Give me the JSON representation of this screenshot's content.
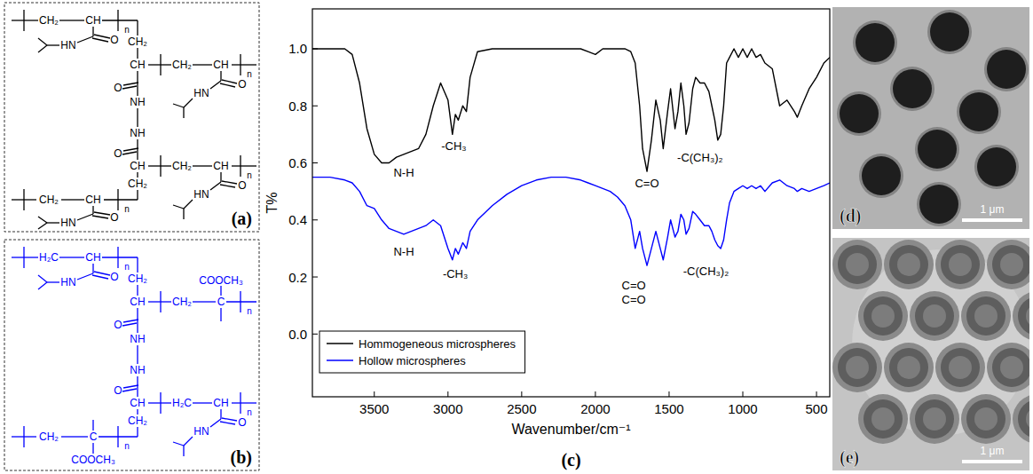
{
  "structure_a": {
    "label": "(a)",
    "color": "#000000",
    "atoms": [
      "CH₂",
      "CH",
      "n",
      "CH₂",
      "HN",
      "O",
      "CH",
      "CH₂",
      "CH",
      "n",
      "HN",
      "O",
      "O",
      "NH",
      "NH",
      "O",
      "CH",
      "CH₂",
      "CH₂",
      "CH",
      "n",
      "CH₂",
      "CH",
      "n",
      "HN",
      "O",
      "HN",
      "O"
    ]
  },
  "structure_b": {
    "label": "(b)",
    "color": "#0000ff",
    "atoms": [
      "H₂C",
      "CH",
      "n",
      "CH₂",
      "HN",
      "O",
      "CH",
      "CH₂",
      "C",
      "n",
      "COOCH₃",
      "O",
      "NH",
      "NH",
      "O",
      "CH",
      "CH₂",
      "CH₂",
      "C",
      "n",
      "COOCH₃",
      "H₂C",
      "CH",
      "n",
      "HN",
      "O"
    ]
  },
  "chart_data": {
    "type": "line",
    "panel_label": "(c)",
    "x_label": "Wavenumber/cm⁻¹",
    "y_label": "T%",
    "x": [
      3920,
      3800,
      3700,
      3650,
      3600,
      3550,
      3500,
      3450,
      3400,
      3350,
      3300,
      3250,
      3200,
      3150,
      3100,
      3050,
      3000,
      2970,
      2950,
      2930,
      2900,
      2875,
      2850,
      2800,
      2700,
      2600,
      2500,
      2400,
      2300,
      2200,
      2100,
      2050,
      2000,
      1950,
      1900,
      1850,
      1800,
      1760,
      1730,
      1700,
      1680,
      1650,
      1620,
      1590,
      1560,
      1540,
      1510,
      1490,
      1460,
      1440,
      1420,
      1400,
      1385,
      1365,
      1340,
      1320,
      1290,
      1260,
      1230,
      1210,
      1190,
      1170,
      1150,
      1130,
      1110,
      1090,
      1060,
      1030,
      1000,
      970,
      940,
      910,
      880,
      850,
      800,
      750,
      700,
      650,
      630,
      600,
      550,
      500,
      450,
      410
    ],
    "series": [
      {
        "name": "Hommogeneous microspheres",
        "color": "#000000",
        "values": [
          1.0,
          1.0,
          1.0,
          0.98,
          0.88,
          0.72,
          0.63,
          0.6,
          0.6,
          0.62,
          0.63,
          0.64,
          0.65,
          0.7,
          0.8,
          0.88,
          0.82,
          0.7,
          0.77,
          0.75,
          0.8,
          0.78,
          0.9,
          0.99,
          1.0,
          1.0,
          1.0,
          1.0,
          1.0,
          1.0,
          1.0,
          0.99,
          0.98,
          1.0,
          1.0,
          1.0,
          1.0,
          0.99,
          0.95,
          0.8,
          0.65,
          0.57,
          0.68,
          0.82,
          0.75,
          0.65,
          0.78,
          0.86,
          0.72,
          0.78,
          0.88,
          0.8,
          0.7,
          0.74,
          0.86,
          0.9,
          0.88,
          0.88,
          0.85,
          0.8,
          0.75,
          0.68,
          0.7,
          0.8,
          0.95,
          0.97,
          1.0,
          0.97,
          1.0,
          0.97,
          1.0,
          0.97,
          0.98,
          0.95,
          0.93,
          0.8,
          0.82,
          0.78,
          0.76,
          0.8,
          0.86,
          0.9,
          0.95,
          0.97
        ]
      },
      {
        "name": "Hollow microspheres",
        "color": "#0000ff",
        "values": [
          0.55,
          0.55,
          0.54,
          0.53,
          0.5,
          0.45,
          0.44,
          0.4,
          0.37,
          0.36,
          0.35,
          0.36,
          0.37,
          0.38,
          0.4,
          0.38,
          0.3,
          0.26,
          0.3,
          0.28,
          0.32,
          0.3,
          0.36,
          0.4,
          0.45,
          0.49,
          0.52,
          0.54,
          0.55,
          0.55,
          0.54,
          0.53,
          0.52,
          0.51,
          0.5,
          0.48,
          0.45,
          0.4,
          0.3,
          0.36,
          0.3,
          0.24,
          0.3,
          0.36,
          0.3,
          0.26,
          0.34,
          0.4,
          0.34,
          0.36,
          0.42,
          0.4,
          0.35,
          0.37,
          0.43,
          0.42,
          0.4,
          0.38,
          0.38,
          0.36,
          0.33,
          0.31,
          0.3,
          0.33,
          0.4,
          0.46,
          0.5,
          0.51,
          0.52,
          0.51,
          0.52,
          0.51,
          0.52,
          0.5,
          0.53,
          0.54,
          0.52,
          0.51,
          0.5,
          0.51,
          0.5,
          0.51,
          0.52,
          0.53
        ]
      }
    ],
    "xlim": [
      3920,
      410
    ],
    "xticks": [
      3500,
      3000,
      2500,
      2000,
      1500,
      1000,
      500
    ],
    "ylim": [
      -0.22,
      1.14
    ],
    "yticks": [
      {
        "value": 0,
        "label": "0.0"
      },
      0.2,
      0.4,
      0.6,
      0.8,
      {
        "value": 1,
        "label": "1.0"
      }
    ],
    "annotations": [
      {
        "text": "N-H",
        "x": 3300,
        "y": 0.565
      },
      {
        "text": "-CH₃",
        "x": 2960,
        "y": 0.66
      },
      {
        "text": "C=O",
        "x": 1650,
        "y": 0.53
      },
      {
        "text": "-C(CH₃)₂",
        "x": 1290,
        "y": 0.62
      },
      {
        "text": "N-H",
        "x": 3300,
        "y": 0.29
      },
      {
        "text": "-CH₃",
        "x": 2950,
        "y": 0.21
      },
      {
        "text": "C=O",
        "x": 1740,
        "y": 0.17
      },
      {
        "text": "C=O",
        "x": 1740,
        "y": 0.12
      },
      {
        "text": "-C(CH₃)₂",
        "x": 1250,
        "y": 0.22
      }
    ],
    "legend": "lower left",
    "grid": false
  },
  "images": [
    {
      "label": "(d)",
      "scale_bar": "1 μm"
    },
    {
      "label": "(e)",
      "scale_bar": "1 μm"
    }
  ]
}
